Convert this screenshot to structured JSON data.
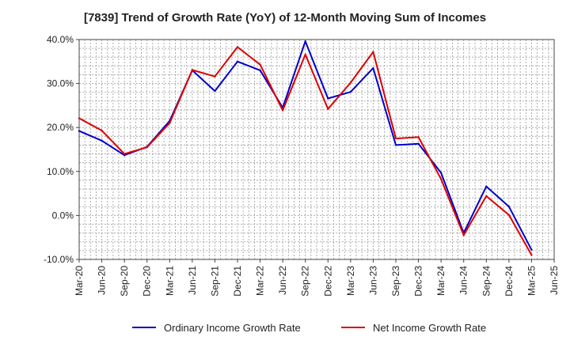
{
  "chart_data": {
    "type": "line",
    "title": "[7839]  Trend of Growth Rate (YoY) of 12-Month Moving Sum of Incomes",
    "categories": [
      "Mar-20",
      "Jun-20",
      "Sep-20",
      "Dec-20",
      "Mar-21",
      "Jun-21",
      "Sep-21",
      "Dec-21",
      "Mar-22",
      "Jun-22",
      "Sep-22",
      "Dec-22",
      "Mar-23",
      "Jun-23",
      "Sep-23",
      "Dec-23",
      "Mar-24",
      "Jun-24",
      "Sep-24",
      "Dec-24",
      "Mar-25",
      "Jun-25"
    ],
    "y_ticks": [
      "-10.0%",
      "0.0%",
      "10.0%",
      "20.0%",
      "30.0%",
      "40.0%"
    ],
    "ylim": [
      -10,
      40
    ],
    "grid": true,
    "legend_position": "bottom",
    "series": [
      {
        "name": "Ordinary Income Growth Rate",
        "color": "#0000cc",
        "values": [
          19.2,
          17.0,
          13.7,
          15.6,
          21.5,
          33.0,
          28.3,
          35.0,
          33.0,
          24.5,
          39.6,
          26.6,
          28.1,
          33.5,
          16.0,
          16.3,
          9.7,
          -4.0,
          6.6,
          2.0,
          -7.8,
          null
        ]
      },
      {
        "name": "Net Income Growth Rate",
        "color": "#dd0000",
        "values": [
          22.1,
          19.3,
          14.0,
          15.5,
          21.0,
          33.1,
          31.6,
          38.3,
          34.3,
          23.9,
          36.6,
          24.2,
          30.2,
          37.2,
          17.5,
          17.8,
          8.3,
          -4.5,
          4.4,
          0.1,
          -9.0,
          null
        ]
      }
    ]
  }
}
